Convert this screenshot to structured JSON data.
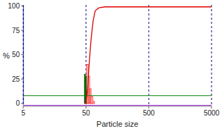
{
  "chart_data": {
    "type": "line",
    "x_label": "Particle size",
    "y_label": "%",
    "log": "x",
    "grid": "x",
    "xlim": [
      5,
      5000
    ],
    "xticks": [
      5,
      50,
      500,
      5000
    ],
    "ylim": [
      -3,
      101
    ],
    "yticks": [
      0,
      25,
      50,
      75,
      100
    ],
    "series": [
      {
        "type": "histogram",
        "color": "#ff3333",
        "bins": [
          48,
          51,
          54,
          57,
          60,
          64,
          68
        ],
        "values": [
          10,
          40,
          28,
          15,
          7,
          2
        ]
      },
      {
        "type": "histogram",
        "color": "#006600",
        "bins": [
          47,
          49,
          51
        ],
        "values": [
          30,
          28
        ]
      },
      {
        "type": "line",
        "color": "#008000",
        "x": [
          5,
          5000
        ],
        "values": [
          8,
          8
        ]
      },
      {
        "type": "line",
        "color": "#0000cc",
        "x": [
          5,
          5
        ],
        "values": [
          0,
          100
        ]
      },
      {
        "type": "line",
        "color": "#9933cc",
        "x": [
          5,
          5000
        ],
        "values": [
          -2,
          -2
        ]
      },
      {
        "type": "line",
        "color": "#dd0000",
        "x": [
          48,
          50,
          53,
          56,
          60,
          65,
          70,
          80,
          100,
          200,
          500,
          5000
        ],
        "values": [
          0,
          2,
          15,
          40,
          65,
          85,
          95,
          98,
          99,
          99,
          99,
          99
        ]
      }
    ]
  }
}
